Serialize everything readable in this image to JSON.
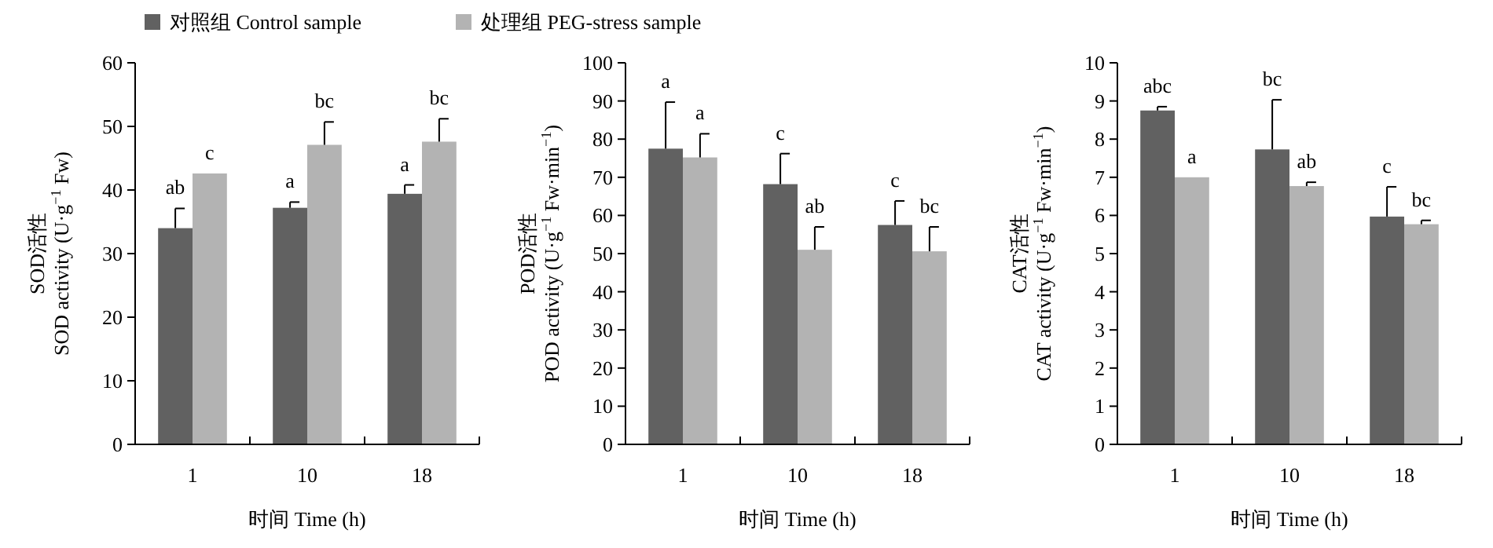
{
  "chart_data": [
    {
      "type": "bar",
      "categories": [
        "1",
        "10",
        "18"
      ],
      "xlabel": "时间 Time (h)",
      "ylabel": "SOD活性\nSOD activity (U·g$^{−1}$ Fw)",
      "ylim": [
        0,
        60
      ],
      "yticks": [
        0,
        10,
        20,
        30,
        40,
        50,
        60
      ],
      "legend": "top",
      "grid": false,
      "series": [
        {
          "name": "对照组 Control sample",
          "color": "#616161",
          "values": [
            34,
            37.2,
            39.4
          ],
          "errors": [
            [
              34,
              37.1
            ],
            [
              37.2,
              38.1
            ],
            [
              39.4,
              40.8
            ]
          ]
        },
        {
          "name": "处理组 PEG-stress sample",
          "color": "#b3b3b3",
          "values": [
            42.6,
            47.1,
            47.6
          ],
          "errors": [
            null,
            [
              47.1,
              50.7
            ],
            [
              47.6,
              51.2
            ]
          ]
        }
      ],
      "annotations": [
        "ab",
        "c",
        "a",
        "bc",
        "a",
        "bc"
      ]
    },
    {
      "type": "bar",
      "categories": [
        "1",
        "10",
        "18"
      ],
      "xlabel": "时间 Time (h)",
      "ylabel": "POD活性\nPOD activity (U·g$^{−1}$ Fw·min$^{−1}$)",
      "ylim": [
        0,
        100
      ],
      "yticks": [
        0,
        10,
        20,
        30,
        40,
        50,
        60,
        70,
        80,
        90,
        100
      ],
      "grid": false,
      "series": [
        {
          "color": "#616161",
          "values": [
            77.5,
            68.2,
            57.5
          ],
          "errors": [
            [
              77.5,
              89.7
            ],
            [
              68.2,
              76.2
            ],
            [
              57.5,
              63.8
            ]
          ]
        },
        {
          "color": "#b3b3b3",
          "values": [
            75.2,
            51,
            50.6
          ],
          "errors": [
            [
              75.2,
              81.4
            ],
            [
              51,
              57
            ],
            [
              50.6,
              57
            ]
          ]
        }
      ],
      "annotations": [
        "a",
        "a",
        "c",
        "ab",
        "c",
        "bc"
      ]
    },
    {
      "type": "bar",
      "categories": [
        "1",
        "10",
        "18"
      ],
      "xlabel": "时间 Time (h)",
      "ylabel": "CAT活性\nCAT activity (U·g$^{−1}$ Fw·min$^{−1}$)",
      "ylim": [
        0,
        10
      ],
      "yticks": [
        0,
        1,
        2,
        3,
        4,
        5,
        6,
        7,
        8,
        9,
        10
      ],
      "grid": false,
      "series": [
        {
          "color": "#616161",
          "values": [
            8.75,
            7.73,
            5.97
          ],
          "errors": [
            [
              8.75,
              8.85
            ],
            [
              7.73,
              9.03
            ],
            [
              5.97,
              6.75
            ]
          ]
        },
        {
          "color": "#b3b3b3",
          "values": [
            7.0,
            6.77,
            5.77
          ],
          "errors": [
            null,
            [
              6.77,
              6.87
            ],
            [
              5.77,
              5.87
            ]
          ]
        }
      ],
      "annotations": [
        "abc",
        "a",
        "bc",
        "ab",
        "c",
        "bc"
      ]
    }
  ]
}
